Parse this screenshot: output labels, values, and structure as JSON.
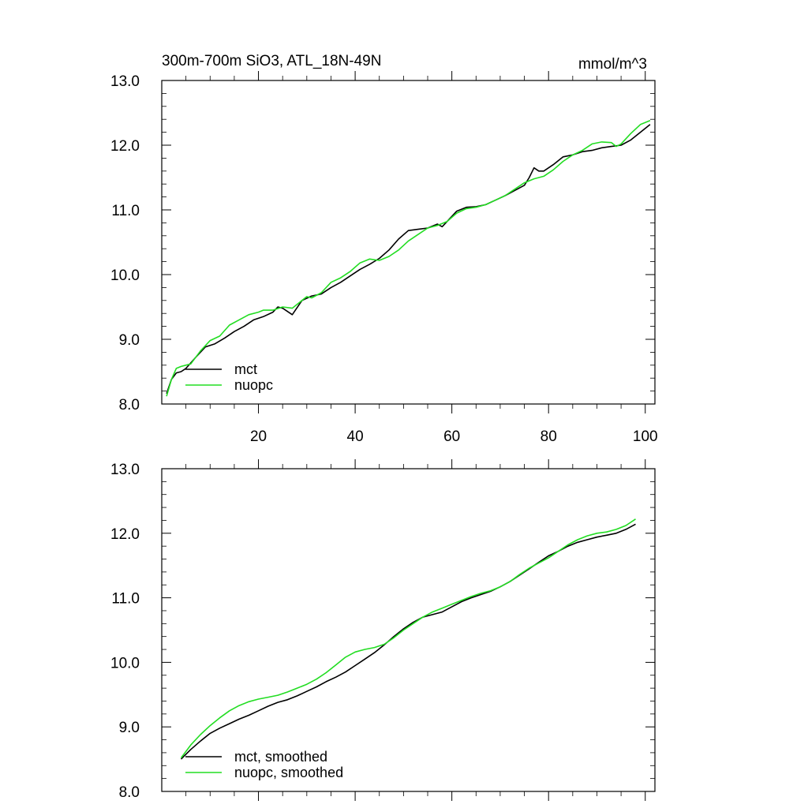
{
  "chart_data": [
    {
      "type": "line",
      "title": "300m-700m SiO3, ATL_18N-49N",
      "units": "mmol/m^3",
      "xlim": [
        0,
        102
      ],
      "ylim": [
        8.0,
        13.0
      ],
      "xticks": [
        20,
        40,
        60,
        80,
        100
      ],
      "yticks": [
        8.0,
        9.0,
        10.0,
        11.0,
        12.0,
        13.0
      ],
      "ytick_labels": [
        "8.0",
        "9.0",
        "10.0",
        "11.0",
        "12.0",
        "13.0"
      ],
      "xtick_labels": [
        "20",
        "40",
        "60",
        "80",
        "100"
      ],
      "legend_position": "bottom-left",
      "series": [
        {
          "name": "mct",
          "color": "#000000",
          "x": [
            1,
            2,
            3,
            4,
            5,
            7,
            9,
            11,
            13,
            15,
            17,
            19,
            21,
            23,
            24,
            25,
            27,
            29,
            31,
            33,
            35,
            37,
            39,
            41,
            43,
            45,
            47,
            49,
            51,
            53,
            55,
            57,
            58,
            59,
            61,
            63,
            65,
            67,
            69,
            71,
            73,
            75,
            76,
            77,
            78,
            79,
            81,
            83,
            85,
            87,
            89,
            91,
            93,
            95,
            97,
            99,
            101
          ],
          "y": [
            8.16,
            8.38,
            8.48,
            8.5,
            8.55,
            8.72,
            8.88,
            8.93,
            9.02,
            9.12,
            9.2,
            9.3,
            9.35,
            9.42,
            9.5,
            9.48,
            9.38,
            9.6,
            9.67,
            9.7,
            9.8,
            9.88,
            9.98,
            10.08,
            10.16,
            10.25,
            10.38,
            10.55,
            10.68,
            10.7,
            10.72,
            10.78,
            10.74,
            10.82,
            10.98,
            11.04,
            11.05,
            11.08,
            11.15,
            11.22,
            11.3,
            11.38,
            11.5,
            11.65,
            11.6,
            11.6,
            11.7,
            11.82,
            11.85,
            11.9,
            11.92,
            11.96,
            11.98,
            12.0,
            12.08,
            12.2,
            12.32
          ]
        },
        {
          "name": "nuopc",
          "color": "#22dd22",
          "x": [
            1,
            2,
            3,
            4,
            6,
            8,
            10,
            12,
            14,
            16,
            18,
            20,
            21,
            23,
            25,
            27,
            29,
            30,
            31,
            33,
            35,
            37,
            39,
            41,
            43,
            45,
            47,
            49,
            51,
            53,
            55,
            57,
            59,
            61,
            63,
            65,
            67,
            69,
            71,
            73,
            75,
            77,
            79,
            81,
            83,
            85,
            87,
            89,
            91,
            93,
            94,
            95,
            97,
            99,
            101
          ],
          "y": [
            8.12,
            8.38,
            8.55,
            8.58,
            8.62,
            8.82,
            8.98,
            9.05,
            9.22,
            9.3,
            9.38,
            9.42,
            9.45,
            9.45,
            9.5,
            9.48,
            9.6,
            9.66,
            9.64,
            9.72,
            9.88,
            9.95,
            10.05,
            10.18,
            10.24,
            10.22,
            10.28,
            10.38,
            10.52,
            10.62,
            10.72,
            10.76,
            10.82,
            10.95,
            11.02,
            11.04,
            11.08,
            11.15,
            11.22,
            11.32,
            11.42,
            11.48,
            11.52,
            11.62,
            11.75,
            11.85,
            11.92,
            12.02,
            12.05,
            12.04,
            11.98,
            12.02,
            12.18,
            12.32,
            12.38
          ]
        }
      ]
    },
    {
      "type": "line",
      "xlim": [
        0,
        102
      ],
      "ylim": [
        8.0,
        13.0
      ],
      "yticks": [
        8.0,
        9.0,
        10.0,
        11.0,
        12.0,
        13.0
      ],
      "ytick_labels": [
        "8.0",
        "9.0",
        "10.0",
        "11.0",
        "12.0",
        "13.0"
      ],
      "xticks": [
        20,
        40,
        60,
        80,
        100
      ],
      "legend_position": "bottom-left",
      "series": [
        {
          "name": "mct, smoothed",
          "color": "#000000",
          "x": [
            4,
            6,
            8,
            10,
            12,
            14,
            16,
            18,
            20,
            22,
            24,
            26,
            28,
            30,
            32,
            34,
            36,
            38,
            40,
            42,
            44,
            46,
            48,
            50,
            52,
            54,
            56,
            58,
            60,
            62,
            64,
            66,
            68,
            70,
            72,
            74,
            76,
            78,
            80,
            82,
            84,
            86,
            88,
            90,
            92,
            94,
            96,
            98
          ],
          "y": [
            8.5,
            8.65,
            8.78,
            8.9,
            8.98,
            9.05,
            9.12,
            9.18,
            9.25,
            9.32,
            9.38,
            9.42,
            9.48,
            9.55,
            9.62,
            9.7,
            9.77,
            9.85,
            9.95,
            10.05,
            10.15,
            10.27,
            10.4,
            10.52,
            10.62,
            10.7,
            10.74,
            10.78,
            10.86,
            10.94,
            11.0,
            11.05,
            11.1,
            11.17,
            11.25,
            11.35,
            11.45,
            11.55,
            11.65,
            11.72,
            11.8,
            11.86,
            11.9,
            11.94,
            11.97,
            12.0,
            12.06,
            12.14
          ]
        },
        {
          "name": "nuopc, smoothed",
          "color": "#22dd22",
          "x": [
            4,
            6,
            8,
            10,
            12,
            14,
            16,
            18,
            20,
            22,
            24,
            26,
            28,
            30,
            32,
            34,
            36,
            38,
            40,
            42,
            44,
            46,
            48,
            50,
            52,
            54,
            56,
            58,
            60,
            62,
            64,
            66,
            68,
            70,
            72,
            74,
            76,
            78,
            80,
            82,
            84,
            86,
            88,
            90,
            92,
            94,
            96,
            98
          ],
          "y": [
            8.52,
            8.72,
            8.88,
            9.02,
            9.14,
            9.25,
            9.33,
            9.39,
            9.43,
            9.46,
            9.49,
            9.54,
            9.6,
            9.66,
            9.74,
            9.84,
            9.96,
            10.08,
            10.16,
            10.2,
            10.23,
            10.28,
            10.38,
            10.5,
            10.6,
            10.7,
            10.78,
            10.84,
            10.9,
            10.96,
            11.02,
            11.07,
            11.11,
            11.17,
            11.25,
            11.36,
            11.46,
            11.54,
            11.62,
            11.72,
            11.82,
            11.9,
            11.96,
            12.0,
            12.02,
            12.06,
            12.12,
            12.22
          ]
        }
      ]
    }
  ]
}
